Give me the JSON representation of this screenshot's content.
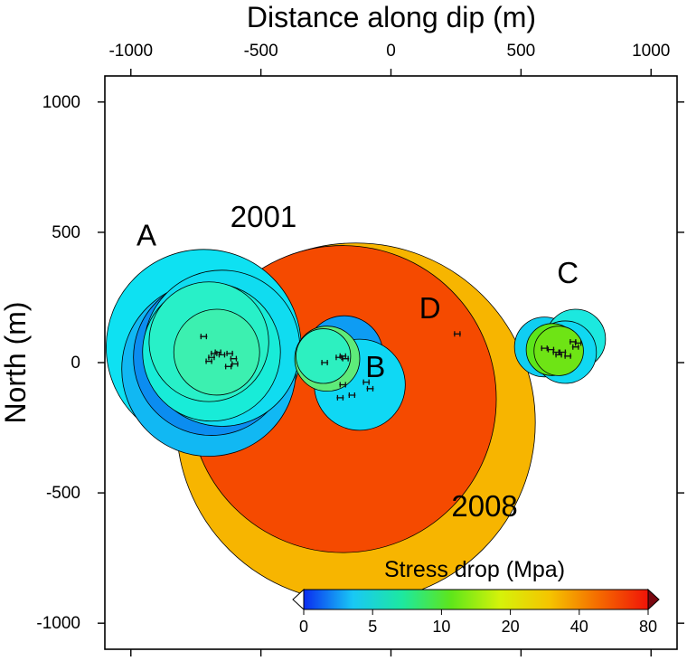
{
  "chart_data": {
    "type": "scatter",
    "title": "",
    "xlabel": "Distance along dip (m)",
    "ylabel": "North (m)",
    "xlim": [
      -1100,
      1100
    ],
    "ylim": [
      -1100,
      1100
    ],
    "x_axis_position": "top",
    "x_ticks": [
      -1000,
      -500,
      0,
      500,
      1000
    ],
    "y_ticks": [
      1000,
      500,
      0,
      -500,
      -1000
    ],
    "x_tick_labels": [
      "-1000",
      "-500",
      "0",
      "500",
      "1000"
    ],
    "y_tick_labels": [
      "1000",
      "500",
      "0",
      "-500",
      "-1000"
    ],
    "grid": false,
    "colorbar": {
      "title": "Stress drop (Mpa)",
      "tick_values": [
        0,
        5,
        10,
        20,
        40,
        80
      ],
      "tick_labels": [
        "0",
        "5",
        "10",
        "20",
        "40",
        "80"
      ],
      "colors": [
        "#0a2cf0",
        "#19c8f5",
        "#1de8a0",
        "#5fe61a",
        "#d6f20a",
        "#f5c400",
        "#f56a00",
        "#f01408"
      ],
      "placement": "bottom-right",
      "extend": "both"
    },
    "annotations": [
      {
        "text": "A",
        "x": -940,
        "y": 450
      },
      {
        "text": "2001",
        "x": -490,
        "y": 520
      },
      {
        "text": "D",
        "x": 150,
        "y": 170
      },
      {
        "text": "B",
        "x": -60,
        "y": -55
      },
      {
        "text": "C",
        "x": 680,
        "y": 305
      },
      {
        "text": "2008",
        "x": 360,
        "y": -590
      }
    ],
    "source_circles": [
      {
        "cluster": "2008",
        "x": -135,
        "y": -230,
        "r": 690,
        "stress_drop": 28,
        "color": "#f7b500"
      },
      {
        "cluster": "2001",
        "x": -185,
        "y": -140,
        "r": 590,
        "stress_drop": 45,
        "color": "#f54a00"
      },
      {
        "cluster": "A",
        "x": -720,
        "y": 60,
        "r": 375,
        "stress_drop": 5.2,
        "color": "#0ee1f2"
      },
      {
        "cluster": "A",
        "x": -700,
        "y": -25,
        "r": 335,
        "stress_drop": 4.0,
        "color": "#11b8f3"
      },
      {
        "cluster": "A",
        "x": -690,
        "y": 20,
        "r": 300,
        "stress_drop": 2.8,
        "color": "#0b8df0"
      },
      {
        "cluster": "A",
        "x": -650,
        "y": 55,
        "r": 300,
        "stress_drop": 5.4,
        "color": "#10dcf0"
      },
      {
        "cluster": "A",
        "x": -690,
        "y": 40,
        "r": 265,
        "stress_drop": 5.8,
        "color": "#18ecd8"
      },
      {
        "cluster": "A",
        "x": -700,
        "y": 80,
        "r": 230,
        "stress_drop": 6.0,
        "color": "#28f0c8"
      },
      {
        "cluster": "A",
        "x": -670,
        "y": 40,
        "r": 165,
        "stress_drop": 6.3,
        "color": "#3cf0b0"
      },
      {
        "cluster": "B",
        "x": -180,
        "y": 30,
        "r": 150,
        "stress_drop": 3.3,
        "color": "#0e9cf3"
      },
      {
        "cluster": "B",
        "x": -120,
        "y": -85,
        "r": 175,
        "stress_drop": 5.1,
        "color": "#0fd8f4"
      },
      {
        "cluster": "B",
        "x": -245,
        "y": 15,
        "r": 125,
        "stress_drop": 8.5,
        "color": "#5eeb7a"
      },
      {
        "cluster": "B",
        "x": -260,
        "y": 25,
        "r": 105,
        "stress_drop": 6.0,
        "color": "#2df0c0"
      },
      {
        "cluster": "C",
        "x": 590,
        "y": 60,
        "r": 115,
        "stress_drop": 4.6,
        "color": "#10cef2"
      },
      {
        "cluster": "C",
        "x": 710,
        "y": 90,
        "r": 115,
        "stress_drop": 5.6,
        "color": "#1ce8df"
      },
      {
        "cluster": "C",
        "x": 670,
        "y": 40,
        "r": 120,
        "stress_drop": 5.1,
        "color": "#10d8f2"
      },
      {
        "cluster": "C",
        "x": 620,
        "y": 50,
        "r": 100,
        "stress_drop": 10.0,
        "color": "#5ce61a"
      },
      {
        "cluster": "C",
        "x": 645,
        "y": 45,
        "r": 95,
        "stress_drop": 10.8,
        "color": "#6ee415"
      }
    ],
    "hypocenters": [
      {
        "x": -720,
        "y": 100
      },
      {
        "x": -690,
        "y": 20
      },
      {
        "x": -680,
        "y": 35
      },
      {
        "x": -665,
        "y": 40
      },
      {
        "x": -650,
        "y": 30
      },
      {
        "x": -620,
        "y": 35
      },
      {
        "x": -605,
        "y": 15
      },
      {
        "x": -625,
        "y": -15
      },
      {
        "x": -600,
        "y": -5
      },
      {
        "x": -700,
        "y": 5
      },
      {
        "x": -255,
        "y": 0
      },
      {
        "x": -175,
        "y": 15
      },
      {
        "x": -185,
        "y": 25
      },
      {
        "x": -200,
        "y": 20
      },
      {
        "x": -185,
        "y": -85
      },
      {
        "x": -195,
        "y": -135
      },
      {
        "x": -150,
        "y": -125
      },
      {
        "x": -95,
        "y": -75
      },
      {
        "x": -80,
        "y": -100
      },
      {
        "x": 255,
        "y": 110
      },
      {
        "x": 590,
        "y": 55
      },
      {
        "x": 615,
        "y": 50
      },
      {
        "x": 635,
        "y": 40
      },
      {
        "x": 645,
        "y": 30
      },
      {
        "x": 660,
        "y": 40
      },
      {
        "x": 680,
        "y": 25
      },
      {
        "x": 700,
        "y": 80
      },
      {
        "x": 720,
        "y": 75
      },
      {
        "x": 710,
        "y": 60
      }
    ]
  }
}
